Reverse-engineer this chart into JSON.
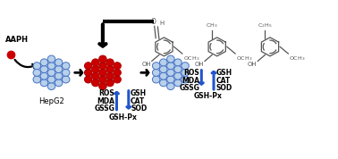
{
  "background_color": "#ffffff",
  "cell_blue_face": "#b8d0ea",
  "cell_blue_edge": "#4472c4",
  "cell_red_face": "#cc0000",
  "cell_red_edge": "#aa0000",
  "arrow_color": "#000000",
  "blue_arrow_color": "#2255cc",
  "text_color": "#000000",
  "aaph_label": "AAPH",
  "hepg2_label": "HepG2",
  "left_labels_up": [
    "ROS",
    "MDA",
    "GSSG"
  ],
  "left_labels_down": [
    "GSH",
    "CAT",
    "SOD"
  ],
  "left_label_bottom": "GSH-Px",
  "right_labels_up": [
    "ROS",
    "MDA",
    "GSSG"
  ],
  "right_labels_down": [
    "GSH",
    "CAT",
    "SOD"
  ],
  "right_label_bottom": "GSH-Px",
  "mol_color": "#555555",
  "figw": 3.78,
  "figh": 1.78,
  "dpi": 100
}
